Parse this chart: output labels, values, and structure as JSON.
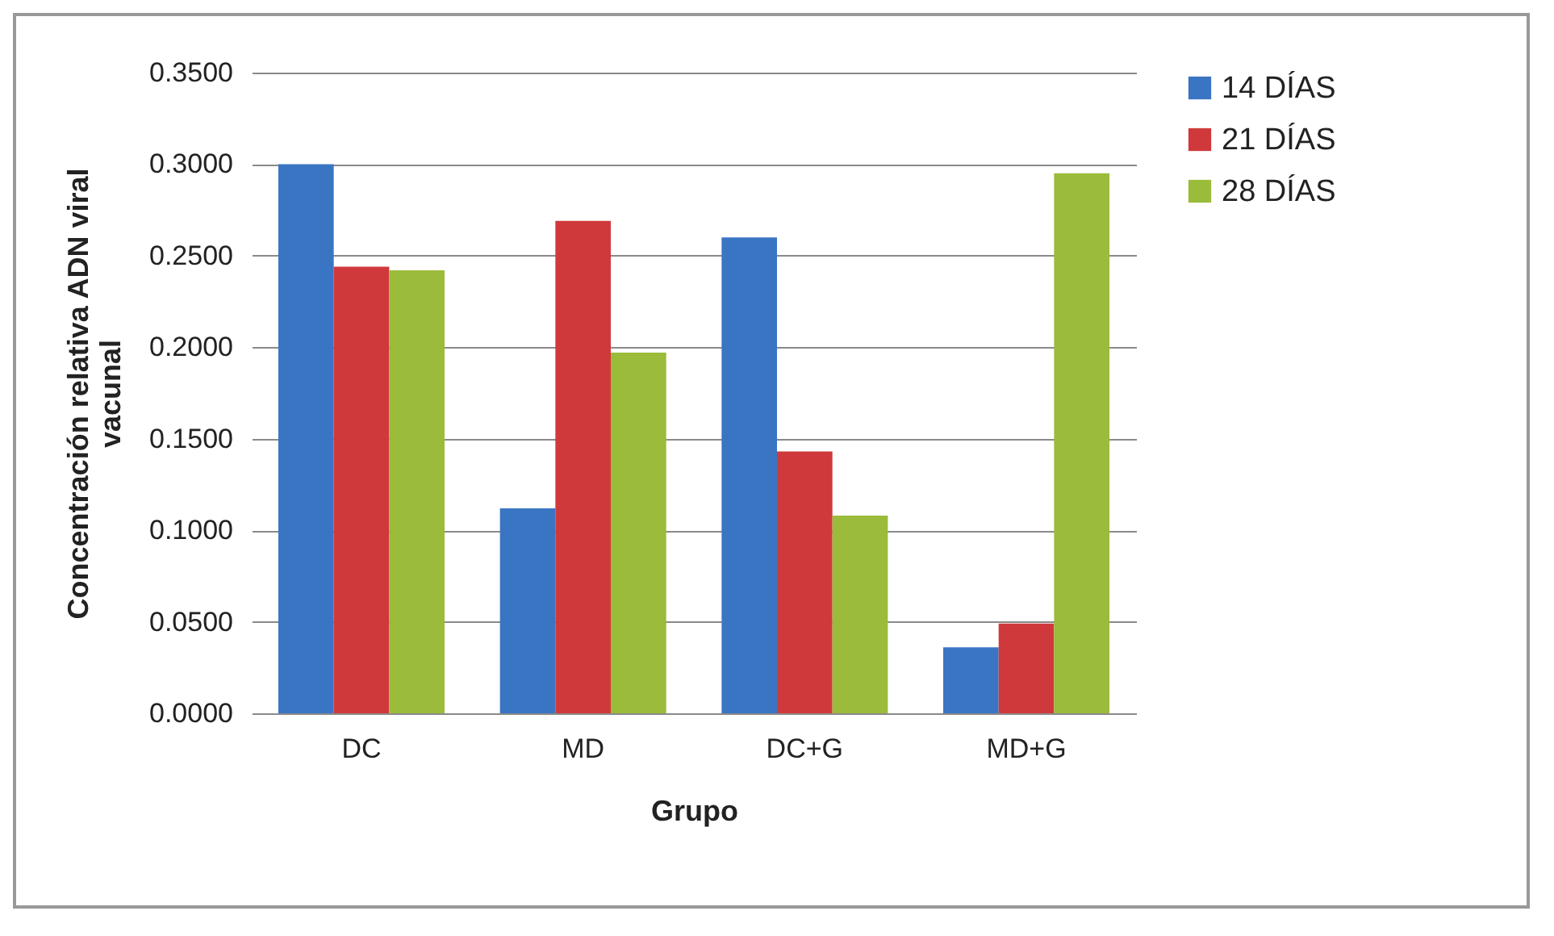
{
  "chart_data": {
    "type": "bar",
    "xlabel": "Grupo",
    "ylabel": "Concentración  relativa ADN viral vacunal",
    "categories": [
      "DC",
      "MD",
      "DC+G",
      "MD+G"
    ],
    "series": [
      {
        "name": "14 DÍAS",
        "color": "#3a75c4",
        "values": [
          0.3,
          0.112,
          0.26,
          0.036
        ]
      },
      {
        "name": "21 DÍAS",
        "color": "#d0393b",
        "values": [
          0.244,
          0.269,
          0.143,
          0.049
        ]
      },
      {
        "name": "28 DÍAS",
        "color": "#9bbb3a",
        "values": [
          0.242,
          0.197,
          0.108,
          0.295
        ]
      }
    ],
    "ylim": [
      0,
      0.35
    ],
    "yticks": [
      {
        "value": 0,
        "label": "0.0000"
      },
      {
        "value": 0.05,
        "label": "0.0500"
      },
      {
        "value": 0.1,
        "label": "0.1000"
      },
      {
        "value": 0.15,
        "label": "0.1500"
      },
      {
        "value": 0.2,
        "label": "0.2000"
      },
      {
        "value": 0.25,
        "label": "0.2500"
      },
      {
        "value": 0.3,
        "label": "0.3000"
      },
      {
        "value": 0.35,
        "label": "0.3500"
      }
    ],
    "grid": "y",
    "legend": "right"
  }
}
